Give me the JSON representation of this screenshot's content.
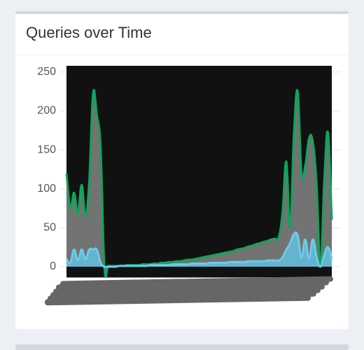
{
  "chart_data": {
    "type": "line",
    "title": "Queries over Time",
    "categories": [
      null,
      null,
      null,
      null,
      null,
      null,
      null,
      null,
      null,
      null,
      null,
      null,
      null,
      null,
      null,
      null,
      null,
      null,
      null,
      null,
      null,
      null,
      null,
      null,
      null,
      null,
      null,
      null,
      null,
      null,
      null,
      null,
      null,
      null,
      null,
      null,
      null,
      null,
      null,
      null,
      null,
      null,
      null,
      null,
      null,
      null,
      null,
      null,
      null,
      null,
      null,
      null,
      null,
      null,
      null,
      null,
      null,
      null,
      null,
      null,
      null,
      null,
      null,
      null,
      null,
      null,
      null,
      null,
      null,
      null,
      null
    ],
    "series": [
      {
        "color": "#11a35c",
        "fill": "rgba(140,140,140,0.8)",
        "values": [
          120,
          75,
          95,
          68,
          105,
          65,
          110,
          222,
          195,
          152,
          0,
          1,
          1,
          1,
          1,
          1,
          2,
          2,
          2,
          2,
          3,
          3,
          3,
          4,
          4,
          5,
          5,
          6,
          6,
          7,
          7,
          8,
          9,
          9,
          10,
          11,
          12,
          13,
          14,
          15,
          16,
          17,
          18,
          19,
          20,
          22,
          23,
          24,
          26,
          27,
          29,
          30,
          32,
          33,
          35,
          36,
          38,
          70,
          135,
          50,
          170,
          225,
          120,
          130,
          165,
          160,
          105,
          0,
          110,
          172,
          60
        ]
      },
      {
        "color": "#6ccbe8",
        "fill": "rgba(100,190,225,0.85)",
        "values": [
          10,
          5,
          22,
          8,
          22,
          10,
          22,
          22,
          22,
          5,
          0,
          0,
          0,
          0,
          1,
          1,
          1,
          1,
          1,
          1,
          1,
          1,
          2,
          2,
          2,
          2,
          2,
          2,
          3,
          3,
          3,
          3,
          3,
          4,
          4,
          4,
          4,
          4,
          5,
          5,
          5,
          5,
          5,
          6,
          6,
          6,
          6,
          6,
          7,
          7,
          7,
          7,
          7,
          8,
          8,
          8,
          8,
          12,
          22,
          30,
          42,
          40,
          12,
          35,
          10,
          35,
          12,
          0,
          15,
          25,
          10
        ]
      }
    ],
    "ylim": [
      -13.5,
      258
    ],
    "yticks": [
      0,
      50,
      100,
      150,
      200,
      250
    ],
    "grid": true
  }
}
